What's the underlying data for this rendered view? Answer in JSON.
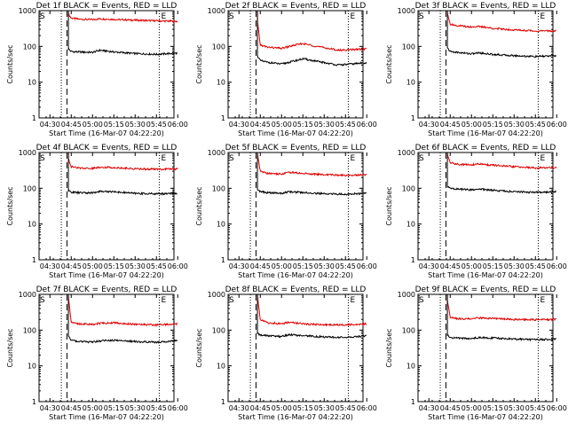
{
  "colors": {
    "events": "#000000",
    "lld": "#e00000",
    "axis": "#000000",
    "background": "#ffffff"
  },
  "common": {
    "ylabel": "Counts/sec",
    "xlabel": "Start Time (16-Mar-07 04:22:20)",
    "x_tick_labels": [
      "04:30",
      "04:45",
      "05:00",
      "05:15",
      "05:30",
      "05:45",
      "06:00"
    ],
    "y_tick_labels": [
      "1",
      "10",
      "100",
      "1000"
    ],
    "marker_labels": [
      "S",
      "E"
    ]
  },
  "chart_data": [
    {
      "type": "line",
      "title": "Det 1f BLACK = Events, RED = LLD",
      "xlabel": "Start Time (16-Mar-07 04:22:20)",
      "ylabel": "Counts/sec",
      "x_ticks": [
        "04:30",
        "04:45",
        "05:00",
        "05:15",
        "05:30",
        "05:45",
        "06:00"
      ],
      "x_range_minutes": [
        0,
        95
      ],
      "yscale": "log",
      "ylim": [
        1,
        1000
      ],
      "start_marker_time": "04:22:20",
      "vertical_lines": [
        {
          "time": "04:38",
          "style": "dotted"
        },
        {
          "time": "04:42",
          "style": "dashed"
        },
        {
          "time": "05:47",
          "style": "dotted"
        }
      ],
      "series": [
        {
          "color": "#e00000",
          "x": [
            "04:43",
            "04:45",
            "04:50",
            "05:00",
            "05:05",
            "05:15",
            "05:30",
            "05:45",
            "06:00"
          ],
          "values": [
            800,
            620,
            580,
            560,
            590,
            570,
            540,
            520,
            500
          ]
        },
        {
          "color": "#000000",
          "x": [
            "04:43",
            "04:45",
            "04:50",
            "05:00",
            "05:05",
            "05:15",
            "05:30",
            "05:45",
            "06:00"
          ],
          "values": [
            85,
            72,
            70,
            68,
            78,
            70,
            63,
            60,
            65
          ]
        }
      ]
    },
    {
      "type": "line",
      "title": "Det 2f BLACK = Events, RED = LLD",
      "xlabel": "Start Time (16-Mar-07 04:22:20)",
      "ylabel": "Counts/sec",
      "x_ticks": [
        "04:30",
        "04:45",
        "05:00",
        "05:15",
        "05:30",
        "05:45",
        "06:00"
      ],
      "x_range_minutes": [
        0,
        95
      ],
      "yscale": "log",
      "ylim": [
        1,
        1000
      ],
      "start_marker_time": "04:22:20",
      "vertical_lines": [
        {
          "time": "04:38",
          "style": "dotted"
        },
        {
          "time": "04:42",
          "style": "dashed"
        },
        {
          "time": "05:47",
          "style": "dotted"
        }
      ],
      "series": [
        {
          "color": "#e00000",
          "x": [
            "04:43",
            "04:45",
            "04:50",
            "05:00",
            "05:10",
            "05:15",
            "05:25",
            "05:40",
            "06:00"
          ],
          "values": [
            500,
            110,
            95,
            88,
            110,
            120,
            100,
            78,
            85
          ]
        },
        {
          "color": "#000000",
          "x": [
            "04:43",
            "04:45",
            "04:50",
            "05:00",
            "05:10",
            "05:15",
            "05:25",
            "05:40",
            "06:00"
          ],
          "values": [
            55,
            40,
            36,
            32,
            40,
            45,
            38,
            30,
            35
          ]
        }
      ]
    },
    {
      "type": "line",
      "title": "Det 3f BLACK = Events, RED = LLD",
      "xlabel": "Start Time (16-Mar-07 04:22:20)",
      "ylabel": "Counts/sec",
      "x_ticks": [
        "04:30",
        "04:45",
        "05:00",
        "05:15",
        "05:30",
        "05:45",
        "06:00"
      ],
      "x_range_minutes": [
        0,
        95
      ],
      "yscale": "log",
      "ylim": [
        1,
        1000
      ],
      "start_marker_time": "04:22:20",
      "vertical_lines": [
        {
          "time": "04:38",
          "style": "dotted"
        },
        {
          "time": "04:42",
          "style": "dashed"
        },
        {
          "time": "05:47",
          "style": "dotted"
        }
      ],
      "series": [
        {
          "color": "#e00000",
          "x": [
            "04:43",
            "04:45",
            "04:50",
            "05:00",
            "05:05",
            "05:15",
            "05:30",
            "05:45",
            "06:00"
          ],
          "values": [
            900,
            420,
            380,
            350,
            360,
            320,
            290,
            270,
            270
          ]
        },
        {
          "color": "#000000",
          "x": [
            "04:43",
            "04:45",
            "04:50",
            "05:00",
            "05:05",
            "05:15",
            "05:30",
            "05:45",
            "06:00"
          ],
          "values": [
            90,
            72,
            68,
            62,
            66,
            60,
            55,
            52,
            55
          ]
        }
      ]
    },
    {
      "type": "line",
      "title": "Det 4f BLACK = Events, RED = LLD",
      "xlabel": "Start Time (16-Mar-07 04:22:20)",
      "ylabel": "Counts/sec",
      "x_ticks": [
        "04:30",
        "04:45",
        "05:00",
        "05:15",
        "05:30",
        "05:45",
        "06:00"
      ],
      "x_range_minutes": [
        0,
        95
      ],
      "yscale": "log",
      "ylim": [
        1,
        1000
      ],
      "start_marker_time": "04:22:20",
      "vertical_lines": [
        {
          "time": "04:38",
          "style": "dotted"
        },
        {
          "time": "04:42",
          "style": "dashed"
        },
        {
          "time": "05:47",
          "style": "dotted"
        }
      ],
      "series": [
        {
          "color": "#e00000",
          "x": [
            "04:43",
            "04:45",
            "04:50",
            "05:00",
            "05:05",
            "05:15",
            "05:30",
            "05:45",
            "06:00"
          ],
          "values": [
            700,
            400,
            370,
            360,
            390,
            380,
            350,
            340,
            350
          ]
        },
        {
          "color": "#000000",
          "x": [
            "04:43",
            "04:45",
            "04:50",
            "05:00",
            "05:05",
            "05:15",
            "05:30",
            "05:45",
            "06:00"
          ],
          "values": [
            85,
            78,
            75,
            74,
            82,
            80,
            72,
            70,
            72
          ]
        }
      ]
    },
    {
      "type": "line",
      "title": "Det 5f BLACK = Events, RED = LLD",
      "xlabel": "Start Time (16-Mar-07 04:22:20)",
      "ylabel": "Counts/sec",
      "x_ticks": [
        "04:30",
        "04:45",
        "05:00",
        "05:15",
        "05:30",
        "05:45",
        "06:00"
      ],
      "x_range_minutes": [
        0,
        95
      ],
      "yscale": "log",
      "ylim": [
        1,
        1000
      ],
      "start_marker_time": "04:22:20",
      "vertical_lines": [
        {
          "time": "04:38",
          "style": "dotted"
        },
        {
          "time": "04:42",
          "style": "dashed"
        },
        {
          "time": "05:47",
          "style": "dotted"
        }
      ],
      "series": [
        {
          "color": "#e00000",
          "x": [
            "04:43",
            "04:45",
            "04:50",
            "05:00",
            "05:05",
            "05:15",
            "05:30",
            "05:45",
            "06:00"
          ],
          "values": [
            900,
            300,
            260,
            250,
            280,
            260,
            240,
            230,
            240
          ]
        },
        {
          "color": "#000000",
          "x": [
            "04:43",
            "04:45",
            "04:50",
            "05:00",
            "05:05",
            "05:15",
            "05:30",
            "05:45",
            "06:00"
          ],
          "values": [
            95,
            80,
            75,
            72,
            80,
            76,
            70,
            68,
            72
          ]
        }
      ]
    },
    {
      "type": "line",
      "title": "Det 6f BLACK = Events, RED = LLD",
      "xlabel": "Start Time (16-Mar-07 04:22:20)",
      "ylabel": "Counts/sec",
      "x_ticks": [
        "04:30",
        "04:45",
        "05:00",
        "05:15",
        "05:30",
        "05:45",
        "06:00"
      ],
      "x_range_minutes": [
        0,
        95
      ],
      "yscale": "log",
      "ylim": [
        1,
        1000
      ],
      "start_marker_time": "04:22:20",
      "vertical_lines": [
        {
          "time": "04:38",
          "style": "dotted"
        },
        {
          "time": "04:42",
          "style": "dashed"
        },
        {
          "time": "05:47",
          "style": "dotted"
        }
      ],
      "series": [
        {
          "color": "#e00000",
          "x": [
            "04:43",
            "04:45",
            "04:50",
            "05:00",
            "05:05",
            "05:15",
            "05:30",
            "05:45",
            "06:00"
          ],
          "values": [
            900,
            520,
            470,
            450,
            480,
            440,
            400,
            370,
            380
          ]
        },
        {
          "color": "#000000",
          "x": [
            "04:43",
            "04:45",
            "04:50",
            "05:00",
            "05:05",
            "05:15",
            "05:30",
            "05:45",
            "06:00"
          ],
          "values": [
            110,
            100,
            95,
            90,
            95,
            88,
            80,
            76,
            80
          ]
        }
      ]
    },
    {
      "type": "line",
      "title": "Det 7f BLACK = Events, RED = LLD",
      "xlabel": "Start Time (16-Mar-07 04:22:20)",
      "ylabel": "Counts/sec",
      "x_ticks": [
        "04:30",
        "04:45",
        "05:00",
        "05:15",
        "05:30",
        "05:45",
        "06:00"
      ],
      "x_range_minutes": [
        0,
        95
      ],
      "yscale": "log",
      "ylim": [
        1,
        1000
      ],
      "start_marker_time": "04:22:20",
      "vertical_lines": [
        {
          "time": "04:38",
          "style": "dotted"
        },
        {
          "time": "04:42",
          "style": "dashed"
        },
        {
          "time": "05:47",
          "style": "dotted"
        }
      ],
      "series": [
        {
          "color": "#e00000",
          "x": [
            "04:43",
            "04:45",
            "04:50",
            "05:00",
            "05:05",
            "05:15",
            "05:30",
            "05:45",
            "06:00"
          ],
          "values": [
            900,
            170,
            150,
            145,
            155,
            160,
            145,
            140,
            150
          ]
        },
        {
          "color": "#000000",
          "x": [
            "04:43",
            "04:45",
            "04:50",
            "05:00",
            "05:05",
            "05:15",
            "05:30",
            "05:45",
            "06:00"
          ],
          "values": [
            70,
            52,
            48,
            46,
            50,
            52,
            48,
            46,
            50
          ]
        }
      ]
    },
    {
      "type": "line",
      "title": "Det 8f BLACK = Events, RED = LLD",
      "xlabel": "Start Time (16-Mar-07 04:22:20)",
      "ylabel": "Counts/sec",
      "x_ticks": [
        "04:30",
        "04:45",
        "05:00",
        "05:15",
        "05:30",
        "05:45",
        "06:00"
      ],
      "x_range_minutes": [
        0,
        95
      ],
      "yscale": "log",
      "ylim": [
        1,
        1000
      ],
      "start_marker_time": "04:22:20",
      "vertical_lines": [
        {
          "time": "04:38",
          "style": "dotted"
        },
        {
          "time": "04:42",
          "style": "dashed"
        },
        {
          "time": "05:47",
          "style": "dotted"
        }
      ],
      "series": [
        {
          "color": "#e00000",
          "x": [
            "04:43",
            "04:45",
            "04:50",
            "05:00",
            "05:05",
            "05:15",
            "05:30",
            "05:45",
            "06:00"
          ],
          "values": [
            900,
            200,
            160,
            150,
            165,
            150,
            140,
            140,
            150
          ]
        },
        {
          "color": "#000000",
          "x": [
            "04:43",
            "04:45",
            "04:50",
            "05:00",
            "05:05",
            "05:15",
            "05:30",
            "05:45",
            "06:00"
          ],
          "values": [
            80,
            72,
            70,
            66,
            75,
            70,
            64,
            62,
            70
          ]
        }
      ]
    },
    {
      "type": "line",
      "title": "Det 9f BLACK = Events, RED = LLD",
      "xlabel": "Start Time (16-Mar-07 04:22:20)",
      "ylabel": "Counts/sec",
      "x_ticks": [
        "04:30",
        "04:45",
        "05:00",
        "05:15",
        "05:30",
        "05:45",
        "06:00"
      ],
      "x_range_minutes": [
        0,
        95
      ],
      "yscale": "log",
      "ylim": [
        1,
        1000
      ],
      "start_marker_time": "04:22:20",
      "vertical_lines": [
        {
          "time": "04:38",
          "style": "dotted"
        },
        {
          "time": "04:42",
          "style": "dashed"
        },
        {
          "time": "05:47",
          "style": "dotted"
        }
      ],
      "series": [
        {
          "color": "#e00000",
          "x": [
            "04:43",
            "04:45",
            "04:50",
            "05:00",
            "05:05",
            "05:15",
            "05:30",
            "05:45",
            "06:00"
          ],
          "values": [
            700,
            230,
            210,
            205,
            220,
            210,
            200,
            195,
            200
          ]
        },
        {
          "color": "#000000",
          "x": [
            "04:43",
            "04:45",
            "04:50",
            "05:00",
            "05:05",
            "05:15",
            "05:30",
            "05:45",
            "06:00"
          ],
          "values": [
            75,
            62,
            60,
            58,
            62,
            60,
            56,
            54,
            56
          ]
        }
      ]
    }
  ]
}
